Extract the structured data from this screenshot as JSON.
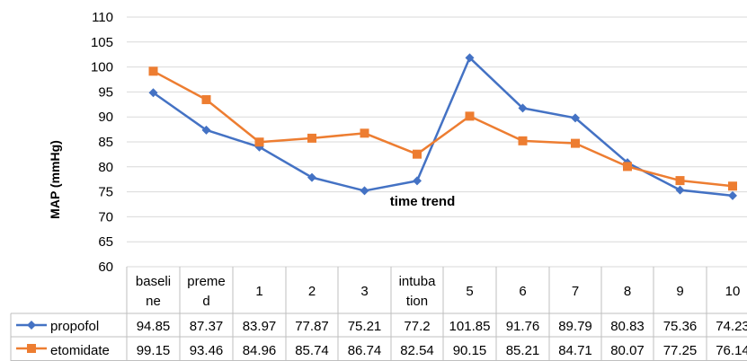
{
  "chart_data": {
    "type": "line",
    "title": "",
    "xlabel": "time trend",
    "ylabel": "MAP (mmHg)",
    "ylim": [
      60,
      110
    ],
    "yticks": [
      "60",
      "65",
      "70",
      "75",
      "80",
      "85",
      "90",
      "95",
      "100",
      "105",
      "110"
    ],
    "categories": [
      [
        "baseli",
        "ne"
      ],
      [
        "preme",
        "d"
      ],
      [
        "1"
      ],
      [
        "2"
      ],
      [
        "3"
      ],
      [
        "intuba",
        "tion"
      ],
      [
        "5"
      ],
      [
        "6"
      ],
      [
        "7"
      ],
      [
        "8"
      ],
      [
        "9"
      ],
      [
        "10"
      ]
    ],
    "grid": true,
    "legend_in_table": true,
    "series": [
      {
        "name": "propofol",
        "color": "#4472C4",
        "marker": "diamond",
        "values": [
          94.85,
          87.37,
          83.97,
          77.87,
          75.21,
          77.2,
          101.85,
          91.76,
          89.79,
          80.83,
          75.36,
          74.23
        ],
        "labels": [
          "94.85",
          "87.37",
          "83.97",
          "77.87",
          "75.21",
          "77.2",
          "101.85",
          "91.76",
          "89.79",
          "80.83",
          "75.36",
          "74.23"
        ]
      },
      {
        "name": "etomidate",
        "color": "#ED7D31",
        "marker": "square",
        "values": [
          99.15,
          93.46,
          84.96,
          85.74,
          86.74,
          82.54,
          90.15,
          85.21,
          84.71,
          80.07,
          77.25,
          76.14
        ],
        "labels": [
          "99.15",
          "93.46",
          "84.96",
          "85.74",
          "86.74",
          "82.54",
          "90.15",
          "85.21",
          "84.71",
          "80.07",
          "77.25",
          "76.14"
        ]
      }
    ]
  }
}
